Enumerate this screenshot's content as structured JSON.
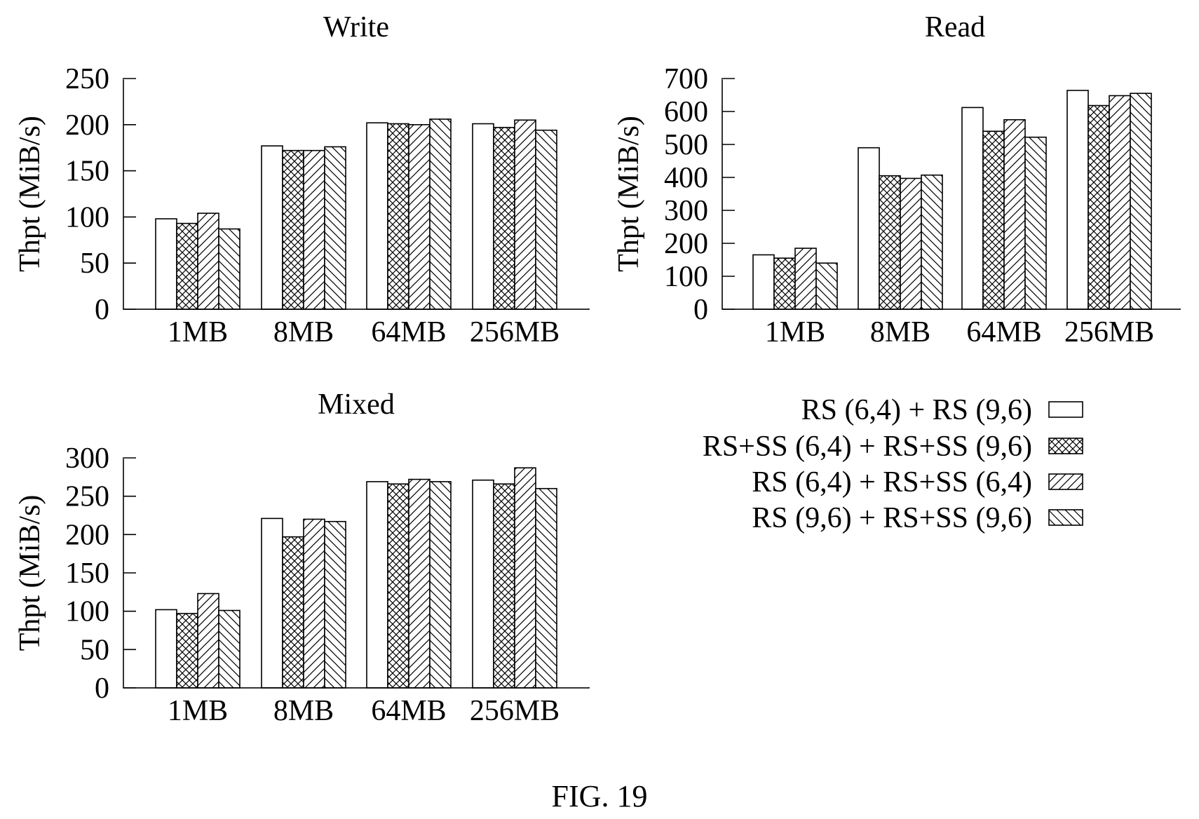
{
  "figure_label": "FIG. 19",
  "legend": [
    {
      "label": "RS (6,4) + RS (9,6)",
      "pattern": "none"
    },
    {
      "label": "RS+SS (6,4) + RS+SS (9,6)",
      "pattern": "crosshatch"
    },
    {
      "label": "RS (6,4) + RS+SS (6,4)",
      "pattern": "diag-up"
    },
    {
      "label": "RS (9,6) + RS+SS (9,6)",
      "pattern": "diag-down"
    }
  ],
  "chart_data": [
    {
      "type": "bar",
      "title": "Write",
      "ylabel": "Thpt (MiB/s)",
      "xlabel": "",
      "categories": [
        "1MB",
        "8MB",
        "64MB",
        "256MB"
      ],
      "ylim": [
        0,
        250
      ],
      "yticks": [
        0,
        50,
        100,
        150,
        200,
        250
      ],
      "series": [
        {
          "name": "RS (6,4) + RS (9,6)",
          "values": [
            98,
            177,
            202,
            201
          ]
        },
        {
          "name": "RS+SS (6,4) + RS+SS (9,6)",
          "values": [
            93,
            172,
            201,
            197
          ]
        },
        {
          "name": "RS (6,4) + RS+SS (6,4)",
          "values": [
            104,
            172,
            200,
            205
          ]
        },
        {
          "name": "RS (9,6) + RS+SS (9,6)",
          "values": [
            87,
            176,
            206,
            194
          ]
        }
      ]
    },
    {
      "type": "bar",
      "title": "Read",
      "ylabel": "Thpt (MiB/s)",
      "xlabel": "",
      "categories": [
        "1MB",
        "8MB",
        "64MB",
        "256MB"
      ],
      "ylim": [
        0,
        700
      ],
      "yticks": [
        0,
        100,
        200,
        300,
        400,
        500,
        600,
        700
      ],
      "series": [
        {
          "name": "RS (6,4) + RS (9,6)",
          "values": [
            165,
            490,
            612,
            664
          ]
        },
        {
          "name": "RS+SS (6,4) + RS+SS (9,6)",
          "values": [
            155,
            405,
            540,
            618
          ]
        },
        {
          "name": "RS (6,4) + RS+SS (6,4)",
          "values": [
            185,
            397,
            575,
            648
          ]
        },
        {
          "name": "RS (9,6) + RS+SS (9,6)",
          "values": [
            140,
            407,
            522,
            655
          ]
        }
      ]
    },
    {
      "type": "bar",
      "title": "Mixed",
      "ylabel": "Thpt (MiB/s)",
      "xlabel": "",
      "categories": [
        "1MB",
        "8MB",
        "64MB",
        "256MB"
      ],
      "ylim": [
        0,
        300
      ],
      "yticks": [
        0,
        50,
        100,
        150,
        200,
        250,
        300
      ],
      "series": [
        {
          "name": "RS (6,4) + RS (9,6)",
          "values": [
            102,
            221,
            269,
            271
          ]
        },
        {
          "name": "RS+SS (6,4) + RS+SS (9,6)",
          "values": [
            97,
            197,
            266,
            266
          ]
        },
        {
          "name": "RS (6,4) + RS+SS (6,4)",
          "values": [
            123,
            220,
            272,
            287
          ]
        },
        {
          "name": "RS (9,6) + RS+SS (9,6)",
          "values": [
            101,
            217,
            269,
            260
          ]
        }
      ]
    }
  ]
}
